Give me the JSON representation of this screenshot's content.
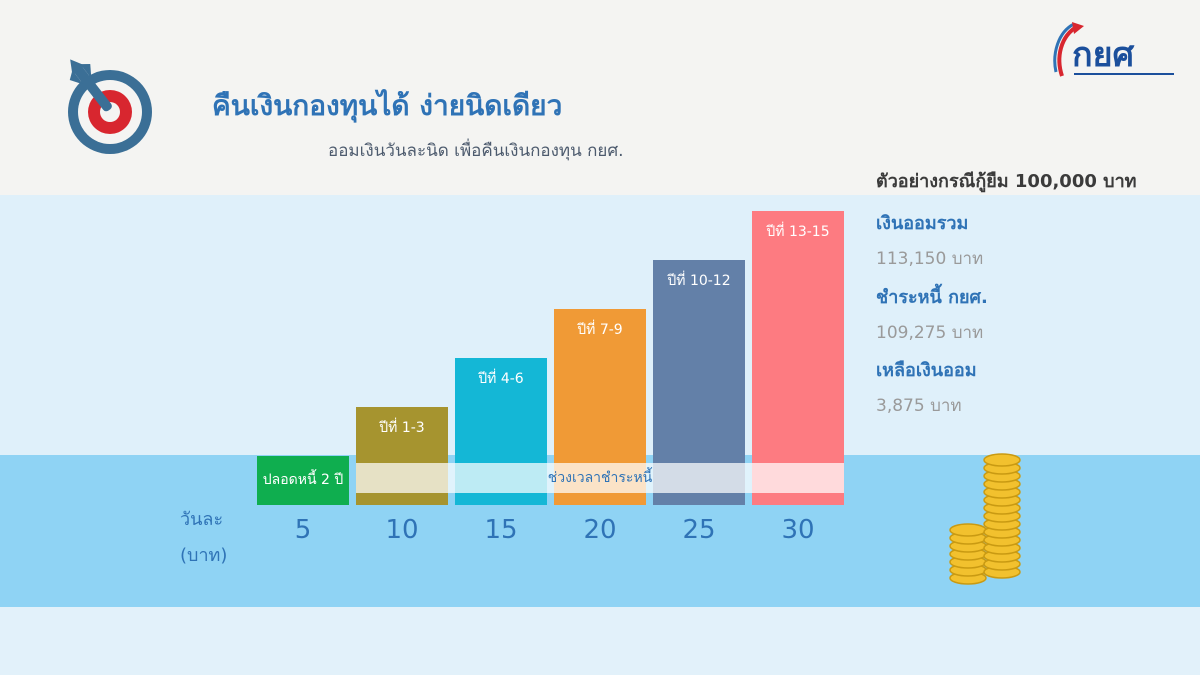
{
  "header": {
    "title": "คืนเงินกองทุนได้ ง่ายนิดเดียว",
    "subtitle": "ออมเงินวันละนิด เพื่อคืนเงินกองทุน กยศ."
  },
  "logo": {
    "text": "กยศ",
    "icon": "kyo-logo-icon"
  },
  "summary": {
    "heading": "ตัวอย่างกรณีกู้ยืม 100,000 บาท",
    "items": [
      {
        "label": "เงินออมรวม",
        "value": "113,150 บาท"
      },
      {
        "label": "ชำระหนี้ กยศ.",
        "value": "109,275 บาท"
      },
      {
        "label": "เหลือเงินออม",
        "value": "3,875 บาท"
      }
    ]
  },
  "chart_data": {
    "type": "bar",
    "y_axis_label_line1": "วันละ",
    "y_axis_label_line2": "(บาท)",
    "categories": [
      "5",
      "10",
      "15",
      "20",
      "25",
      "30"
    ],
    "values": [
      5,
      10,
      15,
      20,
      25,
      30
    ],
    "bar_labels": [
      "ปลอดหนี้ 2 ปี",
      "ปีที่ 1-3",
      "ปีที่ 4-6",
      "ปีที่ 7-9",
      "ปีที่ 10-12",
      "ปีที่ 13-15"
    ],
    "repayment_band_label": "ช่วงเวลาชำระหนี้",
    "colors": [
      "#0fae4f",
      "#a6942f",
      "#14b7d6",
      "#f09a36",
      "#6380a8",
      "#fd7b81"
    ],
    "ylim": [
      0,
      30
    ]
  }
}
